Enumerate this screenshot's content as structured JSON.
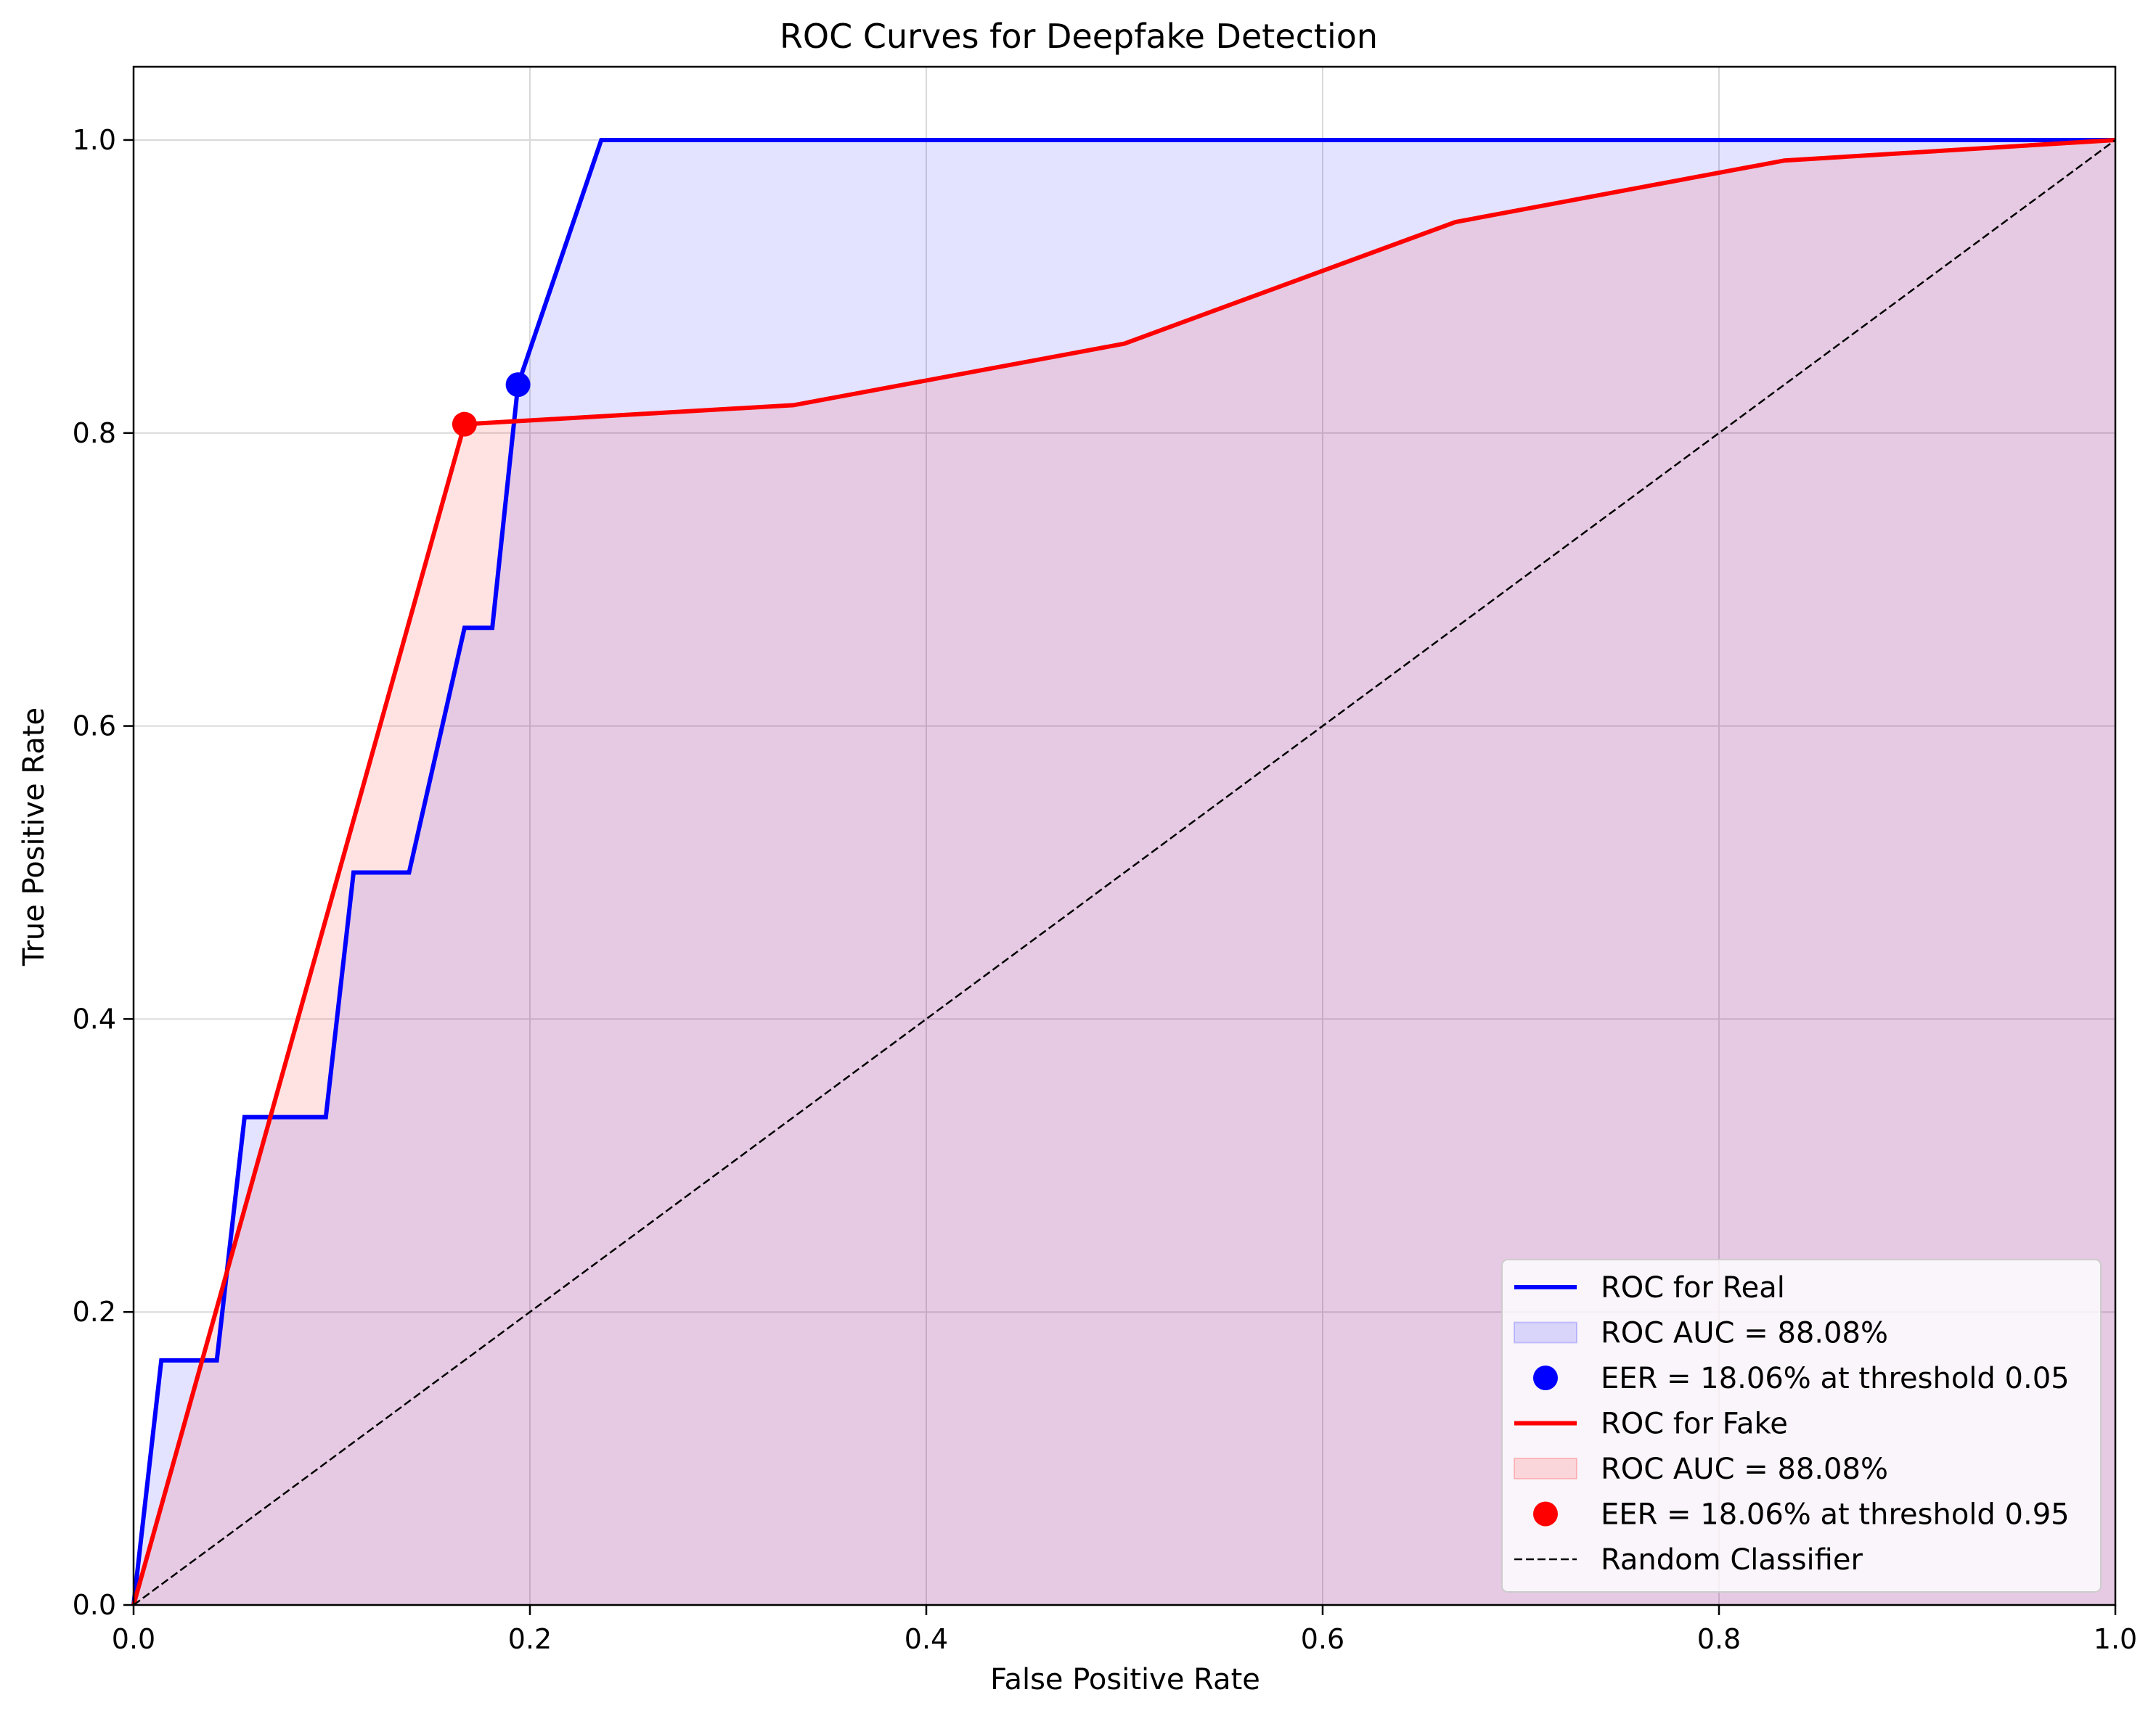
{
  "chart_data": {
    "type": "line",
    "title": "ROC Curves for Deepfake Detection",
    "xlabel": "False Positive Rate",
    "ylabel": "True Positive Rate",
    "xlim": [
      0,
      1
    ],
    "ylim": [
      0,
      1.05
    ],
    "xticks": [
      0.0,
      0.2,
      0.4,
      0.6,
      0.8,
      1.0
    ],
    "yticks": [
      0.0,
      0.2,
      0.4,
      0.6,
      0.8,
      1.0
    ],
    "xtick_labels": [
      "0.0",
      "0.2",
      "0.4",
      "0.6",
      "0.8",
      "1.0"
    ],
    "ytick_labels": [
      "0.0",
      "0.2",
      "0.4",
      "0.6",
      "0.8",
      "1.0"
    ],
    "grid": true,
    "legend_position": "lower right",
    "series": [
      {
        "name": "ROC for Real",
        "color": "#0000ff",
        "fill_color": "#0000ff",
        "x": [
          0.0,
          0.014,
          0.042,
          0.056,
          0.097,
          0.111,
          0.139,
          0.167,
          0.181,
          0.194,
          0.236,
          1.0
        ],
        "y": [
          0.0,
          0.167,
          0.167,
          0.333,
          0.333,
          0.5,
          0.5,
          0.667,
          0.667,
          0.833,
          1.0,
          1.0
        ],
        "auc_label": "ROC AUC = 88.08%",
        "eer": {
          "x": 0.194,
          "y": 0.833,
          "label": "EER = 18.06% at threshold 0.05"
        }
      },
      {
        "name": "ROC for Fake",
        "color": "#ff0000",
        "fill_color": "#ff0000",
        "x": [
          0.0,
          0.167,
          0.333,
          0.5,
          0.667,
          0.833,
          1.0
        ],
        "y": [
          0.0,
          0.806,
          0.819,
          0.861,
          0.944,
          0.986,
          1.0
        ],
        "auc_label": "ROC AUC = 88.08%",
        "eer": {
          "x": 0.167,
          "y": 0.806,
          "label": "EER = 18.06% at threshold 0.95"
        }
      },
      {
        "name": "Random Classifier",
        "color": "#000000",
        "dashed": true,
        "x": [
          0.0,
          1.0
        ],
        "y": [
          0.0,
          1.0
        ]
      }
    ]
  }
}
